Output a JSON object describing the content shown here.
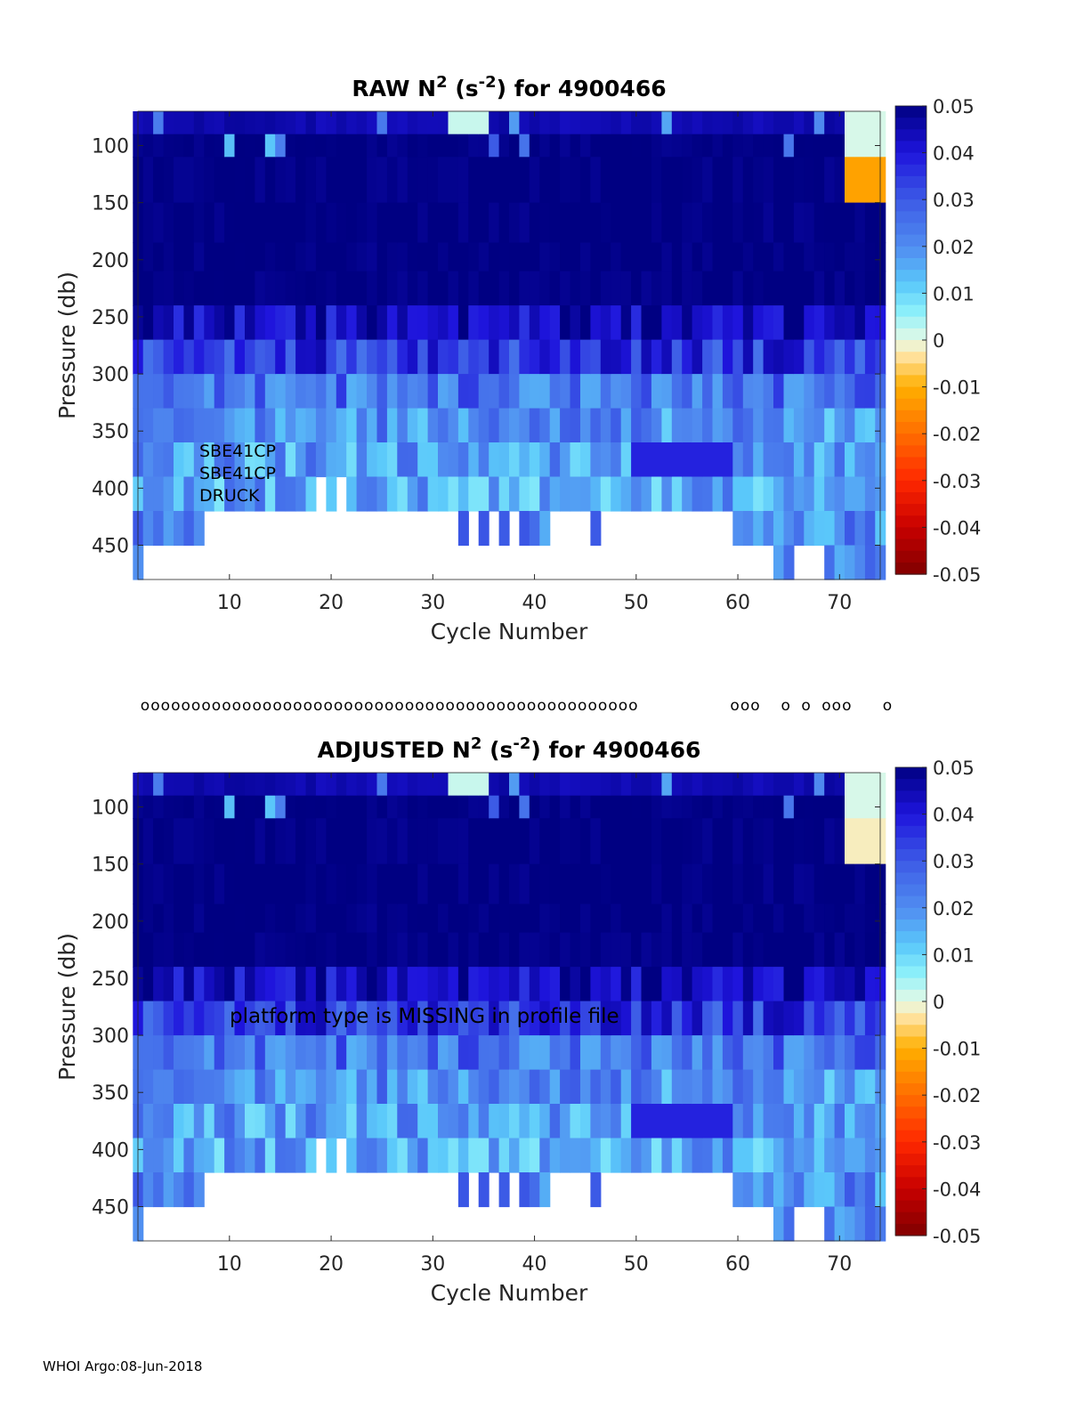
{
  "footer": "WHOI Argo:08-Jun-2018",
  "qc_marker_row": {
    "symbol": "o",
    "cycles": [
      1,
      2,
      3,
      4,
      5,
      6,
      7,
      8,
      9,
      10,
      11,
      12,
      13,
      14,
      15,
      16,
      17,
      18,
      19,
      20,
      21,
      22,
      23,
      24,
      25,
      26,
      27,
      28,
      29,
      30,
      31,
      32,
      33,
      34,
      35,
      36,
      37,
      38,
      39,
      40,
      41,
      42,
      43,
      44,
      45,
      46,
      47,
      48,
      49,
      59,
      60,
      61,
      64,
      66,
      68,
      69,
      70,
      74
    ]
  },
  "colorbar": {
    "ticks": [
      "0.05",
      "0.04",
      "0.03",
      "0.02",
      "0.01",
      "0",
      "-0.01",
      "-0.02",
      "-0.03",
      "-0.04",
      "-0.05"
    ],
    "range": [
      -0.05,
      0.05
    ]
  },
  "chart_data": [
    {
      "type": "heatmap",
      "title_prefix": "RAW N",
      "title_sup1": "2",
      "title_mid": " (s",
      "title_sup2": "-2",
      "title_suffix": ") for 4900466",
      "xlabel": "Cycle Number",
      "ylabel": "Pressure (db)",
      "xlim": [
        1,
        74
      ],
      "ylim": [
        480,
        70
      ],
      "xticks": [
        "10",
        "20",
        "30",
        "40",
        "50",
        "60",
        "70"
      ],
      "yticks": [
        "100",
        "150",
        "200",
        "250",
        "300",
        "350",
        "400",
        "450"
      ],
      "annotation_lines": [
        "SBE41CP",
        "SBE41CP",
        "DRUCK"
      ],
      "pressure_bands": [
        70,
        90,
        110,
        150,
        185,
        210,
        240,
        270,
        300,
        330,
        360,
        390,
        420,
        450,
        480
      ],
      "band_values": [
        0.045,
        0.05,
        0.05,
        0.05,
        0.05,
        0.05,
        0.045,
        0.035,
        0.025,
        0.02,
        0.018,
        0.017,
        0.022,
        0.02
      ],
      "anomalies": [
        {
          "cycles": [
            71,
            74
          ],
          "p": [
            110,
            150
          ],
          "value": -0.012
        },
        {
          "cycles": [
            71,
            74
          ],
          "p": [
            70,
            110
          ],
          "value": 0.001
        },
        {
          "cycles": [
            50,
            59
          ],
          "p": [
            360,
            390
          ],
          "value": 0.038
        },
        {
          "cycles": [
            32,
            35
          ],
          "p": [
            70,
            90
          ],
          "value": 0.002
        }
      ]
    },
    {
      "type": "heatmap",
      "title_prefix": "ADJUSTED N",
      "title_sup1": "2",
      "title_mid": " (s",
      "title_sup2": "-2",
      "title_suffix": ") for 4900466",
      "xlabel": "Cycle Number",
      "ylabel": "Pressure (db)",
      "xlim": [
        1,
        74
      ],
      "ylim": [
        480,
        70
      ],
      "xticks": [
        "10",
        "20",
        "30",
        "40",
        "50",
        "60",
        "70"
      ],
      "yticks": [
        "100",
        "150",
        "200",
        "250",
        "300",
        "350",
        "400",
        "450"
      ],
      "annotation_lines": [
        "platform type is MISSING in profile file"
      ],
      "pressure_bands": [
        70,
        90,
        110,
        150,
        185,
        210,
        240,
        270,
        300,
        330,
        360,
        390,
        420,
        450,
        480
      ],
      "band_values": [
        0.045,
        0.05,
        0.05,
        0.05,
        0.05,
        0.05,
        0.045,
        0.035,
        0.025,
        0.02,
        0.018,
        0.017,
        0.022,
        0.02
      ],
      "anomalies": [
        {
          "cycles": [
            71,
            74
          ],
          "p": [
            110,
            150
          ],
          "value": -0.002
        },
        {
          "cycles": [
            71,
            74
          ],
          "p": [
            70,
            110
          ],
          "value": 0.001
        },
        {
          "cycles": [
            50,
            59
          ],
          "p": [
            360,
            390
          ],
          "value": 0.038
        },
        {
          "cycles": [
            32,
            35
          ],
          "p": [
            70,
            90
          ],
          "value": 0.002
        }
      ]
    }
  ]
}
